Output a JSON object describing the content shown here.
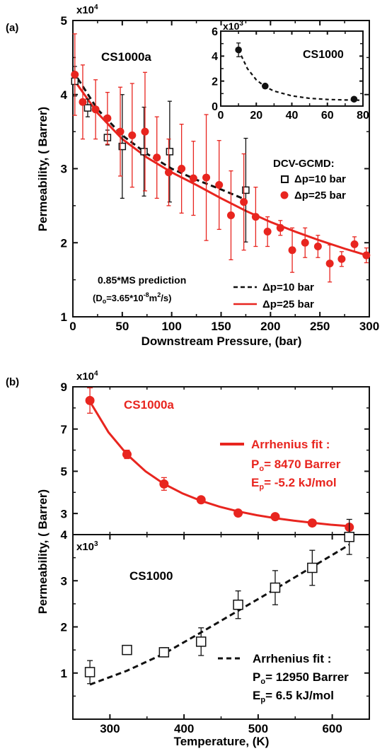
{
  "panel_labels": [
    "(a)",
    "(b)"
  ],
  "colors": {
    "red": "#e8251f",
    "black": "#111111"
  },
  "chart_data": [
    {
      "id": "a-main",
      "type": "scatter",
      "panel": "(a)",
      "title": "CS1000a",
      "xlabel": "Downstream Pressure, (bar)",
      "ylabel": "Permeability, ( Barrer)",
      "y_multiplier": "x10^4",
      "xlim": [
        0,
        300
      ],
      "ylim": [
        1,
        5
      ],
      "xticks": [
        0,
        50,
        100,
        150,
        200,
        250,
        300
      ],
      "yticks": [
        1,
        2,
        3,
        4,
        5
      ],
      "legend_title": "DCV-GCMD:",
      "annotation_lines": [
        "0.85*MS prediction",
        "(Do=3.65*10-8m2/s)"
      ],
      "series": [
        {
          "name": "Δp=10 bar",
          "kind": "points",
          "marker": "open-square",
          "color": "#111111",
          "x": [
            2,
            15,
            35,
            50,
            72,
            98,
            175
          ],
          "y": [
            4.18,
            3.82,
            3.42,
            3.3,
            3.23,
            3.23,
            2.71
          ],
          "err": [
            0.2,
            0.12,
            0.1,
            0.7,
            0.6,
            0.68,
            0.7
          ]
        },
        {
          "name": "Δp=25 bar",
          "kind": "points",
          "marker": "filled-circle",
          "color": "#e8251f",
          "x": [
            2,
            10,
            23,
            35,
            48,
            60,
            73,
            85,
            97,
            110,
            122,
            135,
            148,
            160,
            173,
            185,
            197,
            210,
            222,
            235,
            248,
            260,
            272,
            285,
            297
          ],
          "y": [
            4.27,
            3.9,
            3.8,
            3.68,
            3.5,
            3.45,
            3.5,
            3.15,
            2.95,
            3.0,
            2.87,
            2.88,
            2.78,
            2.37,
            2.55,
            2.35,
            2.15,
            2.2,
            1.9,
            2.0,
            1.95,
            1.72,
            1.78,
            1.98,
            1.83
          ],
          "err": [
            0.55,
            0.5,
            0.4,
            0.35,
            0.6,
            0.7,
            0.8,
            0.55,
            0.45,
            0.6,
            0.5,
            0.85,
            0.6,
            0.6,
            0.65,
            0.4,
            0.2,
            0.1,
            0.3,
            0.2,
            0.15,
            0.25,
            0.1,
            0.1,
            0.1
          ]
        },
        {
          "name": "Δp=10 bar",
          "kind": "line",
          "dash": true,
          "color": "#111111",
          "x": [
            0,
            25,
            50,
            75,
            100,
            125,
            150,
            175
          ],
          "y": [
            4.32,
            3.8,
            3.45,
            3.2,
            3.0,
            2.85,
            2.72,
            2.58
          ]
        },
        {
          "name": "Δp=25 bar",
          "kind": "line",
          "dash": false,
          "color": "#e8251f",
          "x": [
            0,
            25,
            50,
            75,
            100,
            125,
            150,
            175,
            200,
            225,
            250,
            275,
            300
          ],
          "y": [
            4.22,
            3.75,
            3.4,
            3.15,
            2.95,
            2.78,
            2.6,
            2.43,
            2.28,
            2.15,
            2.03,
            1.92,
            1.82
          ]
        }
      ]
    },
    {
      "id": "a-inset",
      "type": "scatter",
      "title": "CS1000",
      "y_multiplier": "x10^3",
      "xlim": [
        0,
        80
      ],
      "ylim": [
        0,
        6
      ],
      "xticks": [
        0,
        20,
        40,
        60,
        80
      ],
      "yticks": [
        0,
        2,
        4,
        6
      ],
      "series": [
        {
          "kind": "points",
          "marker": "filled-circle",
          "color": "#111111",
          "x": [
            10,
            25,
            75
          ],
          "y": [
            4.5,
            1.6,
            0.55
          ],
          "err": [
            0.55,
            0.12,
            0.1
          ]
        },
        {
          "kind": "line",
          "dash": true,
          "color": "#111111",
          "x": [
            10,
            15,
            20,
            25,
            30,
            40,
            50,
            60,
            70,
            78
          ],
          "y": [
            4.5,
            3.0,
            2.1,
            1.55,
            1.2,
            0.82,
            0.62,
            0.53,
            0.49,
            0.47
          ]
        }
      ]
    },
    {
      "id": "b-top",
      "type": "scatter",
      "panel": "(b)",
      "title": "CS1000a",
      "y_multiplier": "x10^4",
      "xlim": [
        250,
        650
      ],
      "ylim": [
        2,
        9
      ],
      "yticks": [
        3,
        5,
        7,
        9
      ],
      "fit_label": "Arrhenius fit :",
      "fit_params": [
        "Po= 8470 Barrer",
        "Ep= -5.2 kJ/mol"
      ],
      "series": [
        {
          "kind": "points",
          "marker": "filled-circle",
          "color": "#e8251f",
          "x": [
            273,
            323,
            373,
            423,
            473,
            523,
            573,
            623
          ],
          "y": [
            8.35,
            5.8,
            4.4,
            3.65,
            3.02,
            2.85,
            2.55,
            2.35
          ],
          "err": [
            0.6,
            0.2,
            0.3,
            0.1,
            0.05,
            0.05,
            0.05,
            0.05
          ]
        },
        {
          "kind": "line",
          "dash": false,
          "color": "#e8251f",
          "x": [
            273,
            298,
            323,
            348,
            373,
            398,
            423,
            448,
            473,
            498,
            523,
            548,
            573,
            598,
            623
          ],
          "y": [
            8.3,
            6.85,
            5.8,
            5.0,
            4.4,
            3.95,
            3.6,
            3.32,
            3.1,
            2.92,
            2.78,
            2.66,
            2.56,
            2.47,
            2.4
          ]
        }
      ]
    },
    {
      "id": "b-bottom",
      "type": "scatter",
      "title": "CS1000",
      "xlabel": "Temperature, (K)",
      "ylabel": "Permeability, ( Barrer)",
      "y_multiplier": "x10^3",
      "xlim": [
        250,
        650
      ],
      "ylim": [
        0,
        4
      ],
      "xticks": [
        300,
        400,
        500,
        600
      ],
      "yticks": [
        1,
        2,
        3,
        4
      ],
      "fit_label": "Arrhenius fit :",
      "fit_params": [
        "Po= 12950 Barrer",
        "Ep= 6.5 kJ/mol"
      ],
      "series": [
        {
          "kind": "points",
          "marker": "open-square",
          "color": "#111111",
          "x": [
            273,
            323,
            373,
            423,
            473,
            523,
            573,
            623
          ],
          "y": [
            1.02,
            1.5,
            1.45,
            1.68,
            2.48,
            2.85,
            3.28,
            3.95
          ],
          "err": [
            0.25,
            0.08,
            0.1,
            0.3,
            0.3,
            0.37,
            0.38,
            0.38
          ]
        },
        {
          "kind": "line",
          "dash": true,
          "color": "#111111",
          "x": [
            273,
            323,
            373,
            423,
            473,
            523,
            573,
            623
          ],
          "y": [
            0.75,
            1.05,
            1.42,
            1.88,
            2.35,
            2.82,
            3.3,
            3.78
          ]
        }
      ]
    }
  ]
}
